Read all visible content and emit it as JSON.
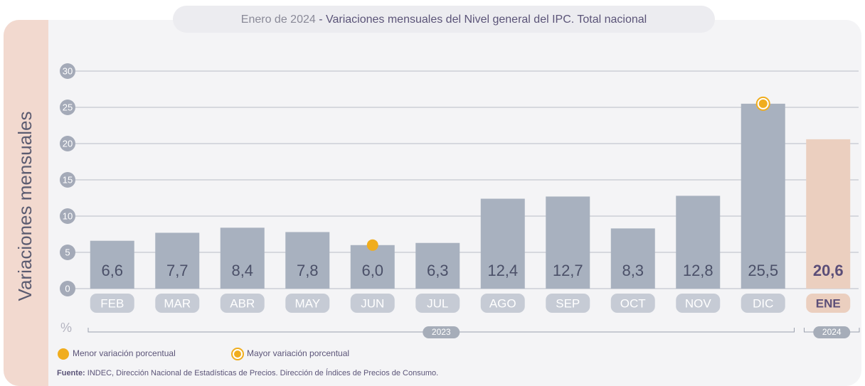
{
  "chart_data": {
    "type": "bar",
    "title_date": "Enero de 2024",
    "title": "- Variaciones mensuales del Nivel general del IPC. Total nacional",
    "ylabel": "Variaciones mensuales",
    "unit": "%",
    "categories": [
      "FEB",
      "MAR",
      "ABR",
      "MAY",
      "JUN",
      "JUL",
      "AGO",
      "SEP",
      "OCT",
      "NOV",
      "DIC",
      "ENE"
    ],
    "values": [
      6.6,
      7.7,
      8.4,
      7.8,
      6.0,
      6.3,
      12.4,
      12.7,
      8.3,
      12.8,
      25.5,
      20.6
    ],
    "value_labels": [
      "6,6",
      "7,7",
      "8,4",
      "7,8",
      "6,0",
      "6,3",
      "12,4",
      "12,7",
      "8,3",
      "12,8",
      "25,5",
      "20,6"
    ],
    "groups": [
      {
        "label": "2023",
        "start": 0,
        "end": 10,
        "color": "#a8b1bf"
      },
      {
        "label": "2024",
        "start": 11,
        "end": 11,
        "color": "#ebcfbf"
      }
    ],
    "ylim": [
      0,
      30
    ],
    "yticks": [
      0,
      5,
      10,
      15,
      20,
      25,
      30
    ],
    "grid": true,
    "legend": [
      {
        "name": "Menor variación porcentual",
        "color": "#f0ad1e"
      },
      {
        "name": "Mayor variación porcentual",
        "color": "#f0ad1e"
      }
    ],
    "source_label": "Fuente:",
    "source": "INDEC, Dirección Nacional de Estadísticas de Precios. Dirección de Índices de Precios de Consumo."
  }
}
